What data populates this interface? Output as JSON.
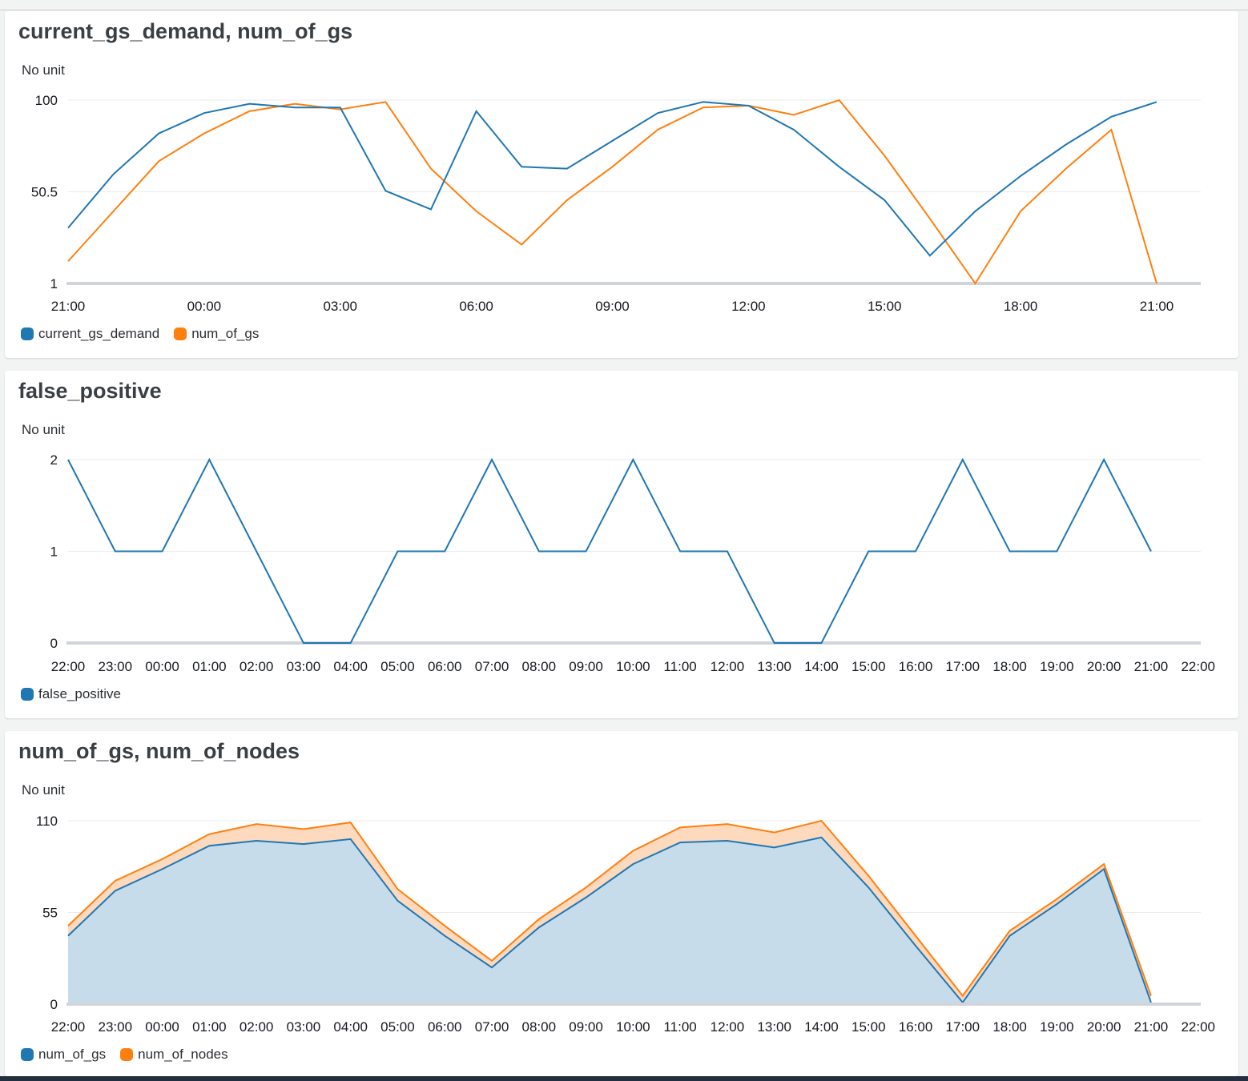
{
  "colors": {
    "blue": "#1f77b4",
    "orange": "#ff7f0e",
    "grid": "#e9ebed",
    "axis": "#d1d5db"
  },
  "panels": [
    {
      "title": "current_gs_demand, num_of_gs",
      "unit": "No unit"
    },
    {
      "title": "false_positive",
      "unit": "No unit"
    },
    {
      "title": "num_of_gs, num_of_nodes",
      "unit": "No unit"
    }
  ],
  "chart_data": [
    {
      "type": "line",
      "title": "current_gs_demand, num_of_gs",
      "ylabel": "No unit",
      "ylim": [
        1,
        100
      ],
      "yticks": [
        "100",
        "50.5",
        "1"
      ],
      "xticks": [
        "21:00",
        "00:00",
        "03:00",
        "06:00",
        "09:00",
        "12:00",
        "15:00",
        "18:00",
        "21:00"
      ],
      "x": [
        "21:00",
        "22:00",
        "23:00",
        "00:00",
        "01:00",
        "02:00",
        "03:00",
        "04:00",
        "05:00",
        "06:00",
        "07:00",
        "08:00",
        "09:00",
        "10:00",
        "11:00",
        "12:00",
        "13:00",
        "14:00",
        "15:00",
        "16:00",
        "17:00",
        "18:00",
        "19:00",
        "20:00",
        "21:00"
      ],
      "legend_position": "bottom-left",
      "series": [
        {
          "name": "current_gs_demand",
          "color": "#1f77b4",
          "values": [
            31,
            60,
            82,
            93,
            98,
            96,
            96,
            51,
            41,
            94,
            64,
            63,
            78,
            93,
            99,
            97,
            84,
            64,
            46,
            16,
            40,
            59,
            76,
            91,
            99
          ]
        },
        {
          "name": "num_of_gs",
          "color": "#ff7f0e",
          "values": [
            13,
            40,
            67,
            82,
            94,
            98,
            95,
            99,
            63,
            40,
            22,
            46,
            64,
            84,
            96,
            97,
            92,
            100,
            70,
            36,
            1,
            40,
            63,
            84,
            1
          ]
        }
      ]
    },
    {
      "type": "line",
      "title": "false_positive",
      "ylabel": "No unit",
      "ylim": [
        0,
        2
      ],
      "yticks": [
        "2",
        "1",
        "0"
      ],
      "xticks": [
        "22:00",
        "23:00",
        "00:00",
        "01:00",
        "02:00",
        "03:00",
        "04:00",
        "05:00",
        "06:00",
        "07:00",
        "08:00",
        "09:00",
        "10:00",
        "11:00",
        "12:00",
        "13:00",
        "14:00",
        "15:00",
        "16:00",
        "17:00",
        "18:00",
        "19:00",
        "20:00",
        "21:00",
        "22:00"
      ],
      "x": [
        "22:00",
        "23:00",
        "00:00",
        "01:00",
        "02:00",
        "03:00",
        "04:00",
        "05:00",
        "06:00",
        "07:00",
        "08:00",
        "09:00",
        "10:00",
        "11:00",
        "12:00",
        "13:00",
        "14:00",
        "15:00",
        "16:00",
        "17:00",
        "18:00",
        "19:00",
        "20:00",
        "21:00"
      ],
      "legend_position": "bottom-left",
      "series": [
        {
          "name": "false_positive",
          "color": "#1f77b4",
          "values": [
            2,
            1,
            1,
            2,
            1,
            0,
            0,
            1,
            1,
            2,
            1,
            1,
            2,
            1,
            1,
            0,
            0,
            1,
            1,
            2,
            1,
            1,
            2,
            1
          ]
        }
      ]
    },
    {
      "type": "area",
      "stacked": true,
      "title": "num_of_gs, num_of_nodes",
      "ylabel": "No unit",
      "ylim": [
        0,
        110
      ],
      "yticks": [
        "110",
        "55",
        "0"
      ],
      "xticks": [
        "22:00",
        "23:00",
        "00:00",
        "01:00",
        "02:00",
        "03:00",
        "04:00",
        "05:00",
        "06:00",
        "07:00",
        "08:00",
        "09:00",
        "10:00",
        "11:00",
        "12:00",
        "13:00",
        "14:00",
        "15:00",
        "16:00",
        "17:00",
        "18:00",
        "19:00",
        "20:00",
        "21:00",
        "22:00"
      ],
      "x": [
        "22:00",
        "23:00",
        "00:00",
        "01:00",
        "02:00",
        "03:00",
        "04:00",
        "05:00",
        "06:00",
        "07:00",
        "08:00",
        "09:00",
        "10:00",
        "11:00",
        "12:00",
        "13:00",
        "14:00",
        "15:00",
        "16:00",
        "17:00",
        "18:00",
        "19:00",
        "20:00",
        "21:00"
      ],
      "legend_position": "bottom-left",
      "series": [
        {
          "name": "num_of_gs",
          "color": "#1f77b4",
          "values": [
            41,
            68,
            81,
            95,
            98,
            96,
            99,
            62,
            41,
            22,
            46,
            64,
            84,
            97,
            98,
            94,
            100,
            70,
            35,
            1,
            41,
            60,
            81,
            1
          ]
        },
        {
          "name": "num_of_nodes",
          "color": "#ff7f0e",
          "values": [
            6,
            6,
            6,
            7,
            10,
            9,
            10,
            7,
            6,
            4,
            5,
            6,
            8,
            9,
            10,
            9,
            10,
            7,
            6,
            4,
            3,
            3,
            3,
            4
          ]
        }
      ]
    }
  ]
}
